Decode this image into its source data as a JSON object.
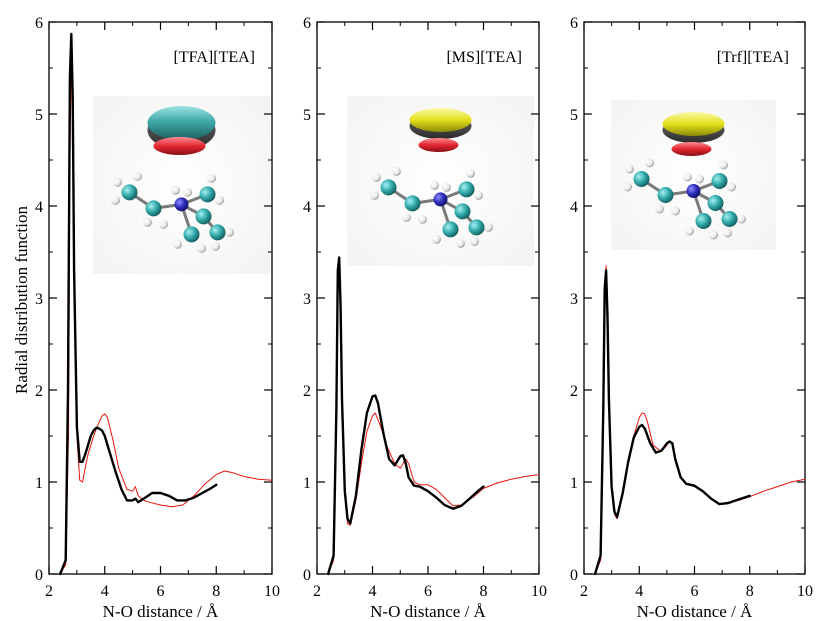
{
  "colors": {
    "sim": "#000000",
    "ref": "#e8140c",
    "cation_C": "#2ea6a6",
    "cation_N": "#2b2bb8",
    "cation_H": "#e9e9e9",
    "iso_cyan": "#3fa8a8",
    "iso_yellow": "#e3e01c",
    "iso_red": "#e22631"
  },
  "chart_data": [
    {
      "type": "line",
      "title": "[TFA][TEA]",
      "xlabel": "N-O distance / Å",
      "ylabel": "Radial distribution function",
      "xlim": [
        2,
        10
      ],
      "ylim": [
        0,
        6
      ],
      "xticks": [
        "2",
        "4",
        "6",
        "8",
        "10"
      ],
      "yticks": [
        "0",
        "1",
        "2",
        "3",
        "4",
        "5",
        "6"
      ],
      "grid": false,
      "inset_image": {
        "isosurface_top": "cyan",
        "isosurface_bottom": "red"
      },
      "series": [
        {
          "color": "black",
          "x": [
            2.4,
            2.6,
            2.68,
            2.75,
            2.8,
            2.85,
            2.9,
            3.0,
            3.1,
            3.2,
            3.3,
            3.4,
            3.5,
            3.6,
            3.7,
            3.8,
            3.9,
            4.0,
            4.1,
            4.2,
            4.4,
            4.6,
            4.8,
            5.0,
            5.1,
            5.2,
            5.3,
            5.5,
            5.7,
            6.0,
            6.3,
            6.6,
            6.9,
            7.2,
            7.5,
            7.8,
            8.0
          ],
          "y": [
            0,
            0.15,
            2.0,
            5.4,
            5.87,
            5.2,
            3.3,
            1.6,
            1.22,
            1.22,
            1.3,
            1.4,
            1.5,
            1.56,
            1.59,
            1.58,
            1.56,
            1.5,
            1.4,
            1.3,
            1.1,
            0.92,
            0.8,
            0.8,
            0.82,
            0.78,
            0.8,
            0.84,
            0.88,
            0.88,
            0.85,
            0.8,
            0.8,
            0.83,
            0.88,
            0.93,
            0.97
          ]
        },
        {
          "color": "red",
          "x": [
            2.4,
            2.6,
            2.7,
            2.75,
            2.8,
            2.85,
            2.9,
            3.0,
            3.1,
            3.2,
            3.3,
            3.4,
            3.5,
            3.6,
            3.7,
            3.8,
            3.9,
            4.0,
            4.1,
            4.3,
            4.5,
            4.8,
            5.0,
            5.1,
            5.2,
            5.4,
            5.6,
            6.0,
            6.4,
            6.8,
            7.2,
            7.6,
            8.0,
            8.3,
            8.6,
            9.0,
            9.5,
            10.0
          ],
          "y": [
            0,
            0.1,
            1.5,
            4.5,
            5.57,
            5.0,
            3.6,
            1.5,
            1.02,
            1.0,
            1.15,
            1.3,
            1.4,
            1.5,
            1.58,
            1.65,
            1.72,
            1.74,
            1.7,
            1.45,
            1.15,
            0.92,
            0.9,
            0.95,
            0.85,
            0.8,
            0.78,
            0.75,
            0.73,
            0.75,
            0.85,
            0.98,
            1.08,
            1.12,
            1.1,
            1.06,
            1.03,
            1.02
          ]
        }
      ]
    },
    {
      "type": "line",
      "title": "[MS][TEA]",
      "xlabel": "N-O distance / Å",
      "ylabel": "",
      "xlim": [
        2,
        10
      ],
      "ylim": [
        0,
        6
      ],
      "xticks": [
        "2",
        "4",
        "6",
        "8",
        "10"
      ],
      "yticks": [
        "0",
        "1",
        "2",
        "3",
        "4",
        "5",
        "6"
      ],
      "grid": false,
      "inset_image": {
        "isosurface_top": "yellow",
        "isosurface_bottom": "red"
      },
      "series": [
        {
          "color": "black",
          "x": [
            2.4,
            2.6,
            2.7,
            2.75,
            2.8,
            2.85,
            2.9,
            3.0,
            3.1,
            3.2,
            3.4,
            3.6,
            3.8,
            4.0,
            4.1,
            4.2,
            4.4,
            4.6,
            4.8,
            5.0,
            5.1,
            5.2,
            5.3,
            5.5,
            5.7,
            6.0,
            6.3,
            6.6,
            6.9,
            7.2,
            7.5,
            7.8,
            8.0
          ],
          "y": [
            0,
            0.2,
            1.8,
            3.3,
            3.44,
            2.9,
            1.9,
            0.9,
            0.6,
            0.55,
            0.85,
            1.35,
            1.75,
            1.93,
            1.94,
            1.85,
            1.52,
            1.25,
            1.18,
            1.28,
            1.29,
            1.2,
            1.05,
            0.96,
            0.95,
            0.9,
            0.83,
            0.75,
            0.71,
            0.74,
            0.82,
            0.9,
            0.95
          ]
        },
        {
          "color": "red",
          "x": [
            2.4,
            2.6,
            2.7,
            2.75,
            2.8,
            2.85,
            2.9,
            3.0,
            3.1,
            3.2,
            3.4,
            3.6,
            3.8,
            4.0,
            4.1,
            4.3,
            4.5,
            4.8,
            5.0,
            5.2,
            5.3,
            5.5,
            5.7,
            6.0,
            6.3,
            6.6,
            6.9,
            7.2,
            7.6,
            8.0,
            8.5,
            9.0,
            9.5,
            10.0
          ],
          "y": [
            0,
            0.15,
            1.6,
            3.1,
            3.3,
            2.8,
            1.9,
            0.85,
            0.55,
            0.53,
            0.8,
            1.2,
            1.55,
            1.72,
            1.75,
            1.6,
            1.4,
            1.2,
            1.15,
            1.25,
            1.2,
            1.0,
            0.97,
            0.97,
            0.92,
            0.83,
            0.74,
            0.75,
            0.83,
            0.93,
            0.99,
            1.03,
            1.06,
            1.08
          ]
        }
      ]
    },
    {
      "type": "line",
      "title": "[Trf][TEA]",
      "xlabel": "N-O distance / Å",
      "ylabel": "",
      "xlim": [
        2,
        10
      ],
      "ylim": [
        0,
        6
      ],
      "xticks": [
        "2",
        "4",
        "6",
        "8",
        "10"
      ],
      "yticks": [
        "0",
        "1",
        "2",
        "3",
        "4",
        "5",
        "6"
      ],
      "grid": false,
      "inset_image": {
        "isosurface_top": "yellow",
        "isosurface_bottom": "red"
      },
      "series": [
        {
          "color": "black",
          "x": [
            2.4,
            2.6,
            2.7,
            2.75,
            2.8,
            2.85,
            2.9,
            3.0,
            3.1,
            3.2,
            3.4,
            3.6,
            3.8,
            4.0,
            4.1,
            4.2,
            4.4,
            4.6,
            4.8,
            5.0,
            5.1,
            5.2,
            5.3,
            5.5,
            5.7,
            6.0,
            6.3,
            6.6,
            6.9,
            7.2,
            7.5,
            7.8,
            8.0
          ],
          "y": [
            0,
            0.2,
            1.8,
            3.1,
            3.3,
            2.8,
            1.9,
            0.95,
            0.68,
            0.62,
            0.88,
            1.22,
            1.48,
            1.6,
            1.62,
            1.58,
            1.42,
            1.32,
            1.34,
            1.42,
            1.44,
            1.42,
            1.25,
            1.05,
            0.98,
            0.96,
            0.9,
            0.82,
            0.76,
            0.77,
            0.8,
            0.83,
            0.85
          ]
        },
        {
          "color": "red",
          "x": [
            2.4,
            2.6,
            2.7,
            2.75,
            2.8,
            2.85,
            2.9,
            3.0,
            3.1,
            3.2,
            3.4,
            3.6,
            3.8,
            4.0,
            4.1,
            4.2,
            4.3,
            4.5,
            4.8,
            5.0,
            5.1,
            5.2,
            5.3,
            5.5,
            5.7,
            6.0,
            6.3,
            6.6,
            6.9,
            7.2,
            7.6,
            8.0,
            8.5,
            9.0,
            9.5,
            10.0
          ],
          "y": [
            0,
            0.15,
            1.7,
            3.1,
            3.35,
            2.9,
            2.0,
            0.95,
            0.65,
            0.6,
            0.85,
            1.2,
            1.5,
            1.7,
            1.75,
            1.74,
            1.65,
            1.4,
            1.33,
            1.4,
            1.44,
            1.42,
            1.28,
            1.05,
            0.98,
            0.95,
            0.9,
            0.82,
            0.76,
            0.78,
            0.8,
            0.84,
            0.9,
            0.95,
            1.0,
            1.03
          ]
        }
      ]
    }
  ]
}
